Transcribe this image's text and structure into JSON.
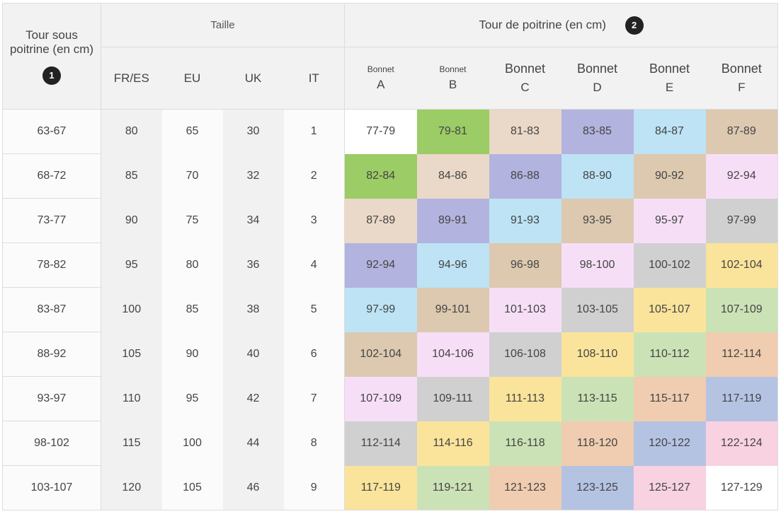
{
  "header": {
    "underbust_label": "Tour sous poitrine (en cm)",
    "underbust_badge": "1",
    "size_group_label": "Taille",
    "bust_group_label": "Tour de poitrine (en cm)",
    "bust_badge": "2",
    "size_columns": [
      "FR/ES",
      "EU",
      "UK",
      "IT"
    ],
    "cup_columns": [
      {
        "prefix": "Bonnet",
        "letter": "A"
      },
      {
        "prefix": "Bonnet",
        "letter": "B"
      },
      {
        "prefix": "Bonnet",
        "letter": "C"
      },
      {
        "prefix": "Bonnet",
        "letter": "D"
      },
      {
        "prefix": "Bonnet",
        "letter": "E"
      },
      {
        "prefix": "Bonnet",
        "letter": "F"
      }
    ]
  },
  "rows": [
    {
      "underbust": "63-67",
      "sizes": [
        "80",
        "65",
        "30",
        "1"
      ],
      "bust": [
        "77-79",
        "79-81",
        "81-83",
        "83-85",
        "84-87",
        "87-89"
      ]
    },
    {
      "underbust": "68-72",
      "sizes": [
        "85",
        "70",
        "32",
        "2"
      ],
      "bust": [
        "82-84",
        "84-86",
        "86-88",
        "88-90",
        "90-92",
        "92-94"
      ]
    },
    {
      "underbust": "73-77",
      "sizes": [
        "90",
        "75",
        "34",
        "3"
      ],
      "bust": [
        "87-89",
        "89-91",
        "91-93",
        "93-95",
        "95-97",
        "97-99"
      ]
    },
    {
      "underbust": "78-82",
      "sizes": [
        "95",
        "80",
        "36",
        "4"
      ],
      "bust": [
        "92-94",
        "94-96",
        "96-98",
        "98-100",
        "100-102",
        "102-104"
      ]
    },
    {
      "underbust": "83-87",
      "sizes": [
        "100",
        "85",
        "38",
        "5"
      ],
      "bust": [
        "97-99",
        "99-101",
        "101-103",
        "103-105",
        "105-107",
        "107-109"
      ]
    },
    {
      "underbust": "88-92",
      "sizes": [
        "105",
        "90",
        "40",
        "6"
      ],
      "bust": [
        "102-104",
        "104-106",
        "106-108",
        "108-110",
        "110-112",
        "112-114"
      ]
    },
    {
      "underbust": "93-97",
      "sizes": [
        "110",
        "95",
        "42",
        "7"
      ],
      "bust": [
        "107-109",
        "109-111",
        "111-113",
        "113-115",
        "115-117",
        "117-119"
      ]
    },
    {
      "underbust": "98-102",
      "sizes": [
        "115",
        "100",
        "44",
        "8"
      ],
      "bust": [
        "112-114",
        "114-116",
        "116-118",
        "118-120",
        "120-122",
        "122-124"
      ]
    },
    {
      "underbust": "103-107",
      "sizes": [
        "120",
        "105",
        "46",
        "9"
      ],
      "bust": [
        "117-119",
        "119-121",
        "121-123",
        "123-125",
        "125-127",
        "127-129"
      ]
    }
  ],
  "bust_colors": [
    [
      "#ffffff",
      "#9ccc65",
      "#ead9c8",
      "#b3b3df",
      "#bde3f5",
      "#dcc9b0"
    ],
    [
      "#9ccc65",
      "#ead9c8",
      "#b3b3df",
      "#bde3f5",
      "#dcc9b0",
      "#f6dff6"
    ],
    [
      "#ead9c8",
      "#b3b3df",
      "#bde3f5",
      "#dcc9b0",
      "#f6dff6",
      "#d0d0d0"
    ],
    [
      "#b3b3df",
      "#bde3f5",
      "#dcc9b0",
      "#f6dff6",
      "#d0d0d0",
      "#fae49b"
    ],
    [
      "#bde3f5",
      "#dcc9b0",
      "#f6dff6",
      "#d0d0d0",
      "#fae49b",
      "#cbe2b6"
    ],
    [
      "#dcc9b0",
      "#f6dff6",
      "#d0d0d0",
      "#fae49b",
      "#cbe2b6",
      "#f0cdb0"
    ],
    [
      "#f6dff6",
      "#d0d0d0",
      "#fae49b",
      "#cbe2b6",
      "#f0cdb0",
      "#b5c3e3"
    ],
    [
      "#d0d0d0",
      "#fae49b",
      "#cbe2b6",
      "#f0cdb0",
      "#b5c3e3",
      "#f8d2e1"
    ],
    [
      "#fae49b",
      "#cbe2b6",
      "#f0cdb0",
      "#b5c3e3",
      "#f8d2e1",
      "#ffffff"
    ]
  ]
}
